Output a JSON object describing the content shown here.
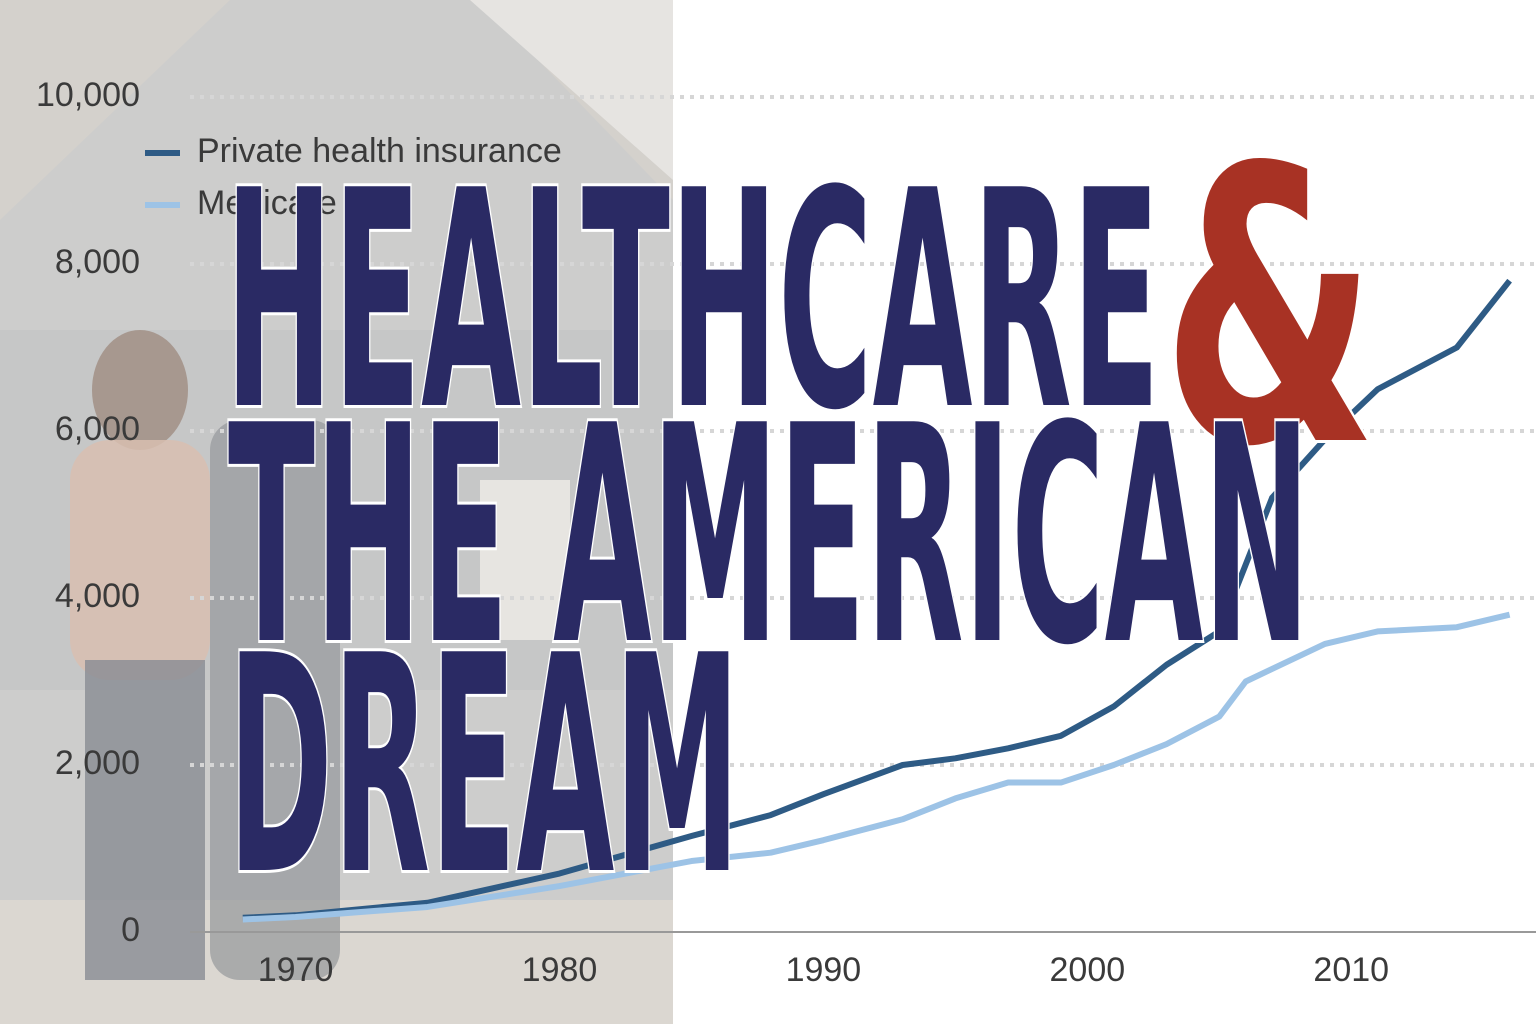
{
  "chart_data": {
    "type": "line",
    "title_lines": [
      "HEALTHCARE",
      "&",
      "THE AMERICAN",
      "DREAM"
    ],
    "x": [
      1968,
      1970,
      1975,
      1980,
      1985,
      1988,
      1990,
      1993,
      1995,
      1997,
      1999,
      2001,
      2003,
      2005,
      2006,
      2007,
      2009,
      2011,
      2014,
      2016
    ],
    "series": [
      {
        "name": "Private health insurance",
        "color": "#2e5b85",
        "values": [
          170,
          200,
          350,
          700,
          1150,
          1400,
          1650,
          2000,
          2080,
          2200,
          2350,
          2700,
          3200,
          3600,
          4400,
          5200,
          5900,
          6500,
          7000,
          7800
        ]
      },
      {
        "name": "Medicare",
        "color": "#9dc3e6",
        "values": [
          150,
          180,
          300,
          550,
          850,
          950,
          1100,
          1350,
          1600,
          1790,
          1790,
          2000,
          2250,
          2580,
          3000,
          3150,
          3450,
          3600,
          3650,
          3800
        ]
      }
    ],
    "xlim": [
      1966,
      2017
    ],
    "xticks": [
      1970,
      1980,
      1990,
      2000,
      2010
    ],
    "ylim": [
      0,
      10000
    ],
    "yticks": [
      0,
      {
        "value": 2000,
        "label": "2,000"
      },
      {
        "value": 4000,
        "label": "4,000"
      },
      {
        "value": 6000,
        "label": "6,000"
      },
      {
        "value": 8000,
        "label": "8,000"
      },
      {
        "value": 10000,
        "label": "10,000"
      }
    ],
    "grid": true,
    "title_color": "#2a2a64",
    "ampersand_color": "#a83224"
  }
}
